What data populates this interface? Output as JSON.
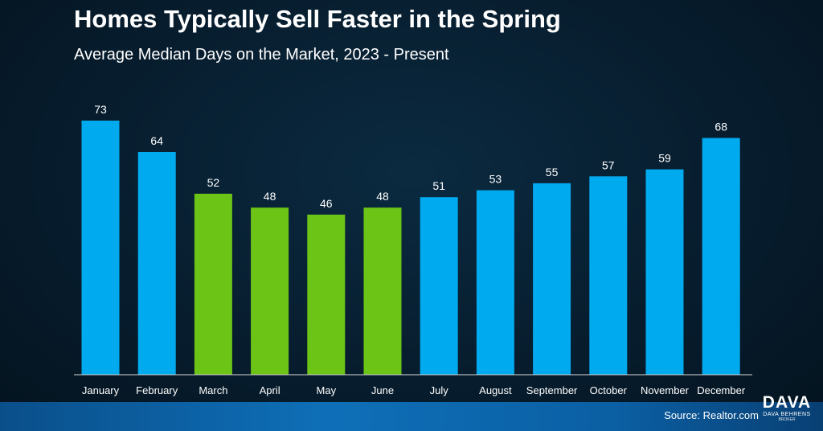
{
  "header": {
    "title": "Homes Typically Sell Faster in the Spring",
    "subtitle": "Average Median Days on the Market, 2023 - Present"
  },
  "footer": {
    "source": "Source: Realtor.com",
    "logo_main": "DAVA",
    "logo_sub": "DAVA BEHRENS",
    "logo_sub2": "BROKER"
  },
  "colors": {
    "blue_bar": "#00aaee",
    "green_bar": "#6cc417",
    "axis": "#d9d9d9",
    "text": "#ffffff"
  },
  "chart_data": {
    "type": "bar",
    "title": "Homes Typically Sell Faster in the Spring",
    "subtitle": "Average Median Days on the Market, 2023 - Present",
    "xlabel": "",
    "ylabel": "",
    "ylim": [
      0,
      73
    ],
    "grid": false,
    "legend": "none",
    "categories": [
      "January",
      "February",
      "March",
      "April",
      "May",
      "June",
      "July",
      "August",
      "September",
      "October",
      "November",
      "December"
    ],
    "values": [
      73,
      64,
      52,
      48,
      46,
      48,
      51,
      53,
      55,
      57,
      59,
      68
    ],
    "highlighted": [
      false,
      false,
      true,
      true,
      true,
      true,
      false,
      false,
      false,
      false,
      false,
      false
    ],
    "data_labels": true
  }
}
